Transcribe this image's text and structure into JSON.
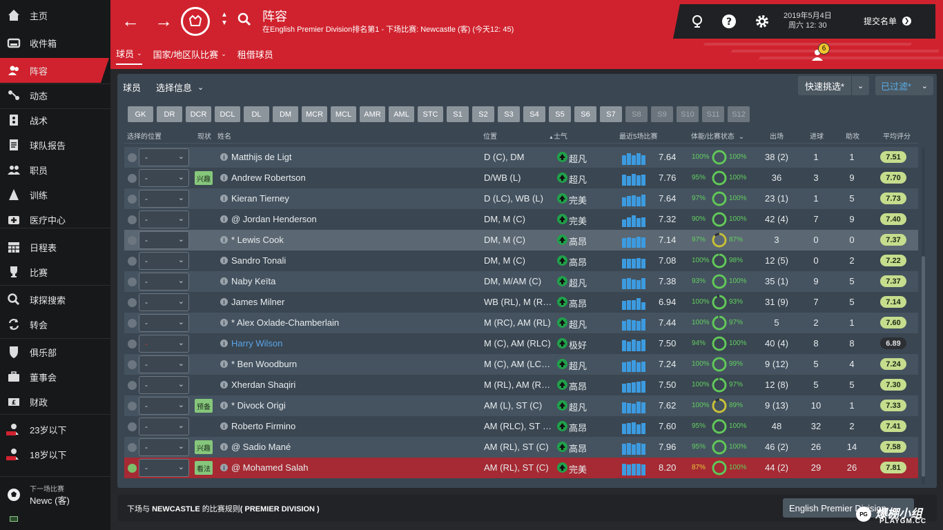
{
  "sidebar": {
    "items": [
      {
        "label": "主页",
        "icon": "home-icon"
      },
      {
        "label": "收件箱",
        "icon": "inbox-icon"
      },
      {
        "label": "阵容",
        "icon": "squad-icon",
        "active": true
      },
      {
        "label": "动态",
        "icon": "dynamics-icon"
      },
      {
        "label": "战术",
        "icon": "tactics-icon"
      },
      {
        "label": "球队报告",
        "icon": "report-icon"
      },
      {
        "label": "职员",
        "icon": "staff-icon"
      },
      {
        "label": "训练",
        "icon": "training-icon"
      },
      {
        "label": "医疗中心",
        "icon": "medical-icon"
      },
      {
        "label": "日程表",
        "icon": "calendar-icon"
      },
      {
        "label": "比赛",
        "icon": "trophy-icon"
      },
      {
        "label": "球探搜索",
        "icon": "search-icon"
      },
      {
        "label": "转会",
        "icon": "transfer-icon"
      },
      {
        "label": "俱乐部",
        "icon": "club-icon"
      },
      {
        "label": "董事会",
        "icon": "board-icon"
      },
      {
        "label": "财政",
        "icon": "finance-icon"
      },
      {
        "label": "23岁以下",
        "icon": "u23-icon"
      },
      {
        "label": "18岁以下",
        "icon": "u18-icon"
      }
    ],
    "next_match": {
      "label": "下一场比赛",
      "value": "Newc (客)"
    }
  },
  "header": {
    "title": "阵容",
    "subtitle": "在English Premier Division排名第1 - 下场比赛: Newcastle (客) (今天12: 45)",
    "tabs": [
      {
        "label": "球员"
      },
      {
        "label": "国家/地区队比赛"
      },
      {
        "label": "租借球员"
      }
    ],
    "date": "2019年5月4日",
    "time": "周六 12: 30",
    "submit": "提交名单",
    "notifications": "6"
  },
  "toolbar": {
    "players_label": "球员",
    "select_info": "选择信息",
    "quick_pick": "快速挑选*",
    "filtered": "已过滤*"
  },
  "positions": [
    "GK",
    "DR",
    "DCR",
    "DCL",
    "DL",
    "DM",
    "MCR",
    "MCL",
    "AMR",
    "AML",
    "STC",
    "S1",
    "S2",
    "S3",
    "S4",
    "S5",
    "S6",
    "S7",
    "S8",
    "S9",
    "S10",
    "S11",
    "S12"
  ],
  "columns": {
    "selected_pos": "选择的位置",
    "status": "现状",
    "name": "姓名",
    "position": "位置",
    "morale": "士气",
    "last5": "最近5场比赛",
    "cond": "体能/比赛状态",
    "apps": "出场",
    "goals": "进球",
    "assists": "助攻",
    "avr": "平均评分"
  },
  "players": [
    {
      "sel": "-",
      "status": "",
      "name": "Matthijs de Ligt",
      "pos": "D (C), DM",
      "morale": "超凡",
      "bars": [
        0.8,
        0.95,
        0.75,
        0.95,
        0.8
      ],
      "rating": "7.64",
      "cond": "100%",
      "sharp": "100%",
      "apps": "38 (2)",
      "goals": "1",
      "assists": "1",
      "avr": "7.51"
    },
    {
      "sel": "-",
      "status": "兴趣",
      "name": "Andrew Robertson",
      "pos": "D/WB (L)",
      "morale": "超凡",
      "bars": [
        0.9,
        0.8,
        0.95,
        0.85,
        0.9
      ],
      "rating": "7.76",
      "cond": "95%",
      "sharp": "100%",
      "apps": "36",
      "goals": "3",
      "assists": "9",
      "avr": "7.70"
    },
    {
      "sel": "-",
      "status": "",
      "name": "Kieran Tierney",
      "pos": "D (LC), WB (L)",
      "morale": "完美",
      "bars": [
        0.7,
        0.85,
        0.9,
        0.8,
        0.95
      ],
      "rating": "7.64",
      "cond": "97%",
      "sharp": "100%",
      "apps": "23 (1)",
      "goals": "1",
      "assists": "5",
      "avr": "7.73"
    },
    {
      "sel": "-",
      "status": "",
      "name": "@ Jordan Henderson",
      "pos": "DM, M (C)",
      "morale": "完美",
      "bars": [
        0.6,
        0.8,
        0.95,
        0.7,
        0.75
      ],
      "rating": "7.32",
      "cond": "90%",
      "sharp": "100%",
      "apps": "42 (4)",
      "goals": "7",
      "assists": "9",
      "avr": "7.40"
    },
    {
      "sel": "-",
      "status": "",
      "name": "* Lewis Cook",
      "pos": "DM, M (C)",
      "morale": "高昂",
      "bars": [
        0.8,
        0.85,
        0.8,
        0.9,
        0.85
      ],
      "rating": "7.14",
      "cond": "97%",
      "sharp": "87%",
      "apps": "3",
      "goals": "0",
      "assists": "0",
      "avr": "7.37"
    },
    {
      "sel": "-",
      "status": "",
      "name": "Sandro Tonali",
      "pos": "DM, M (C)",
      "morale": "高昂",
      "bars": [
        0.75,
        0.8,
        0.75,
        0.85,
        0.8
      ],
      "rating": "7.08",
      "cond": "100%",
      "sharp": "98%",
      "apps": "12 (5)",
      "goals": "0",
      "assists": "2",
      "avr": "7.22"
    },
    {
      "sel": "-",
      "status": "",
      "name": "Naby Keïta",
      "pos": "DM, M/AM (C)",
      "morale": "超凡",
      "bars": [
        0.85,
        0.9,
        0.8,
        0.7,
        0.9
      ],
      "rating": "7.38",
      "cond": "93%",
      "sharp": "100%",
      "apps": "35 (1)",
      "goals": "9",
      "assists": "5",
      "avr": "7.37"
    },
    {
      "sel": "-",
      "status": "",
      "name": "James Milner",
      "pos": "WB (RL), M (RL...",
      "morale": "高昂",
      "bars": [
        0.7,
        0.75,
        0.8,
        0.95,
        0.6
      ],
      "rating": "6.94",
      "cond": "100%",
      "sharp": "93%",
      "apps": "31 (9)",
      "goals": "7",
      "assists": "5",
      "avr": "7.14"
    },
    {
      "sel": "-",
      "status": "",
      "name": "* Alex Oxlade-Chamberlain",
      "pos": "M (RC), AM (RL)",
      "morale": "超凡",
      "bars": [
        0.8,
        0.9,
        0.85,
        0.75,
        0.95
      ],
      "rating": "7.44",
      "cond": "100%",
      "sharp": "97%",
      "apps": "5",
      "goals": "2",
      "assists": "1",
      "avr": "7.60"
    },
    {
      "sel": "-",
      "status": "",
      "name": "Harry Wilson",
      "pos": "M (C), AM (RLC)",
      "morale": "极好",
      "bars": [
        0.9,
        0.8,
        0.95,
        0.85,
        0.95
      ],
      "rating": "7.50",
      "cond": "94%",
      "sharp": "100%",
      "apps": "40 (4)",
      "goals": "8",
      "assists": "8",
      "avr": "6.89",
      "link": true
    },
    {
      "sel": "-",
      "status": "",
      "name": "* Ben Woodburn",
      "pos": "M (C), AM (LC),...",
      "morale": "超凡",
      "bars": [
        0.8,
        0.85,
        0.95,
        0.75,
        0.85
      ],
      "rating": "7.24",
      "cond": "100%",
      "sharp": "99%",
      "apps": "9 (12)",
      "goals": "5",
      "assists": "4",
      "avr": "7.24"
    },
    {
      "sel": "-",
      "status": "",
      "name": "Xherdan Shaqiri",
      "pos": "M (RL), AM (RL...",
      "morale": "高昂",
      "bars": [
        0.7,
        0.8,
        0.85,
        0.9,
        0.95
      ],
      "rating": "7.50",
      "cond": "100%",
      "sharp": "97%",
      "apps": "12 (8)",
      "goals": "5",
      "assists": "5",
      "avr": "7.30"
    },
    {
      "sel": "-",
      "status": "预备",
      "name": "* Divock Origi",
      "pos": "AM (L), ST (C)",
      "morale": "超凡",
      "bars": [
        0.9,
        0.85,
        0.8,
        0.95,
        0.9
      ],
      "rating": "7.62",
      "cond": "100%",
      "sharp": "89%",
      "apps": "9 (13)",
      "goals": "10",
      "assists": "1",
      "avr": "7.33"
    },
    {
      "sel": "-",
      "status": "",
      "name": "Roberto Firmino",
      "pos": "AM (RLC), ST (C)",
      "morale": "高昂",
      "bars": [
        0.85,
        0.9,
        0.95,
        0.8,
        0.9
      ],
      "rating": "7.60",
      "cond": "95%",
      "sharp": "100%",
      "apps": "48",
      "goals": "32",
      "assists": "2",
      "avr": "7.41"
    },
    {
      "sel": "-",
      "status": "兴趣",
      "name": "@ Sadio Mané",
      "pos": "AM (RL), ST (C)",
      "morale": "高昂",
      "bars": [
        0.9,
        0.95,
        0.85,
        0.95,
        0.9
      ],
      "rating": "7.96",
      "cond": "95%",
      "sharp": "100%",
      "apps": "46 (2)",
      "goals": "26",
      "assists": "14",
      "avr": "7.58"
    },
    {
      "sel": "-",
      "status": "看法",
      "name": "@ Mohamed Salah",
      "pos": "AM (RL), ST (C)",
      "morale": "完美",
      "bars": [
        0.95,
        0.9,
        0.95,
        0.95,
        0.9
      ],
      "rating": "8.20",
      "cond": "87%",
      "sharp": "100%",
      "apps": "44 (2)",
      "goals": "29",
      "assists": "26",
      "avr": "7.81",
      "selected": true
    }
  ],
  "footer": {
    "rules_prefix": "下场与 ",
    "rules_team": "NEWCASTLE",
    "rules_mid": " 的比赛规则",
    "rules_comp": "( PREMIER DIVISION )",
    "competition": "English Premier Division"
  },
  "watermark": {
    "brand": "爆棚小组",
    "site": "PLAYGM.CC"
  },
  "colors": {
    "accent": "#d0222e",
    "sidebar": "#17181a",
    "panel": "#3a4651",
    "selected_row": "#a52a33",
    "bar": "#3c9be0",
    "good": "#62d060",
    "rating_badge": "#c5dd8d"
  }
}
